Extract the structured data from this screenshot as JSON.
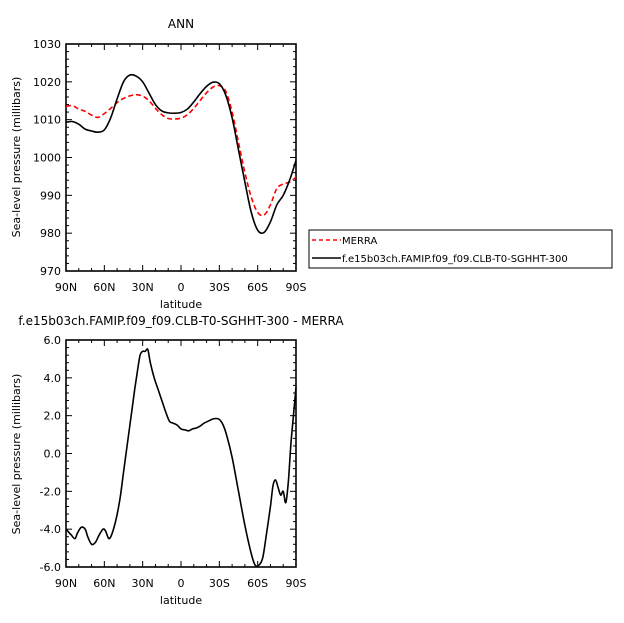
{
  "chart_data": [
    {
      "type": "line",
      "title": "ANN",
      "xlabel": "latitude",
      "ylabel": "Sea-level pressure (millibars)",
      "xlim": [
        90,
        -90
      ],
      "ylim": [
        970,
        1030
      ],
      "xticks": [
        {
          "v": 90,
          "label": "90N"
        },
        {
          "v": 60,
          "label": "60N"
        },
        {
          "v": 30,
          "label": "30N"
        },
        {
          "v": 0,
          "label": "0"
        },
        {
          "v": -30,
          "label": "30S"
        },
        {
          "v": -60,
          "label": "60S"
        },
        {
          "v": -90,
          "label": "90S"
        }
      ],
      "yticks": [
        {
          "v": 970,
          "label": "970"
        },
        {
          "v": 980,
          "label": "980"
        },
        {
          "v": 990,
          "label": "990"
        },
        {
          "v": 1000,
          "label": "1000"
        },
        {
          "v": 1010,
          "label": "1010"
        },
        {
          "v": 1020,
          "label": "1020"
        },
        {
          "v": 1030,
          "label": "1030"
        }
      ],
      "legend_position": "right-bottom",
      "series": [
        {
          "name": "MERRA",
          "color": "#ff0000",
          "dash": "dashed",
          "x": [
            90,
            85,
            80,
            75,
            70,
            65,
            60,
            55,
            50,
            45,
            40,
            35,
            30,
            25,
            20,
            15,
            10,
            5,
            0,
            -5,
            -10,
            -15,
            -20,
            -25,
            -30,
            -35,
            -40,
            -45,
            -50,
            -55,
            -60,
            -65,
            -70,
            -75,
            -80,
            -85,
            -90
          ],
          "y": [
            1013.5,
            1013.7,
            1012.8,
            1012.2,
            1011.2,
            1010.6,
            1011.6,
            1013.0,
            1014.5,
            1015.6,
            1016.3,
            1016.6,
            1016.2,
            1015.0,
            1013.0,
            1011.3,
            1010.3,
            1010.2,
            1010.4,
            1011.3,
            1013.0,
            1015.1,
            1017.1,
            1018.6,
            1019.0,
            1017.5,
            1012.0,
            1004.0,
            996.0,
            989.5,
            985.5,
            984.8,
            987.5,
            991.8,
            993.0,
            993.5,
            994.8
          ]
        },
        {
          "name": "f.e15b03ch.FAMIP.f09_f09.CLB-T0-SGHHT-300",
          "color": "#000000",
          "dash": "solid",
          "x": [
            90,
            85,
            80,
            75,
            70,
            65,
            60,
            55,
            50,
            45,
            40,
            35,
            30,
            25,
            20,
            15,
            10,
            5,
            0,
            -5,
            -10,
            -15,
            -20,
            -25,
            -30,
            -35,
            -40,
            -45,
            -50,
            -55,
            -60,
            -65,
            -70,
            -75,
            -80,
            -85,
            -90
          ],
          "y": [
            1009.3,
            1009.5,
            1008.8,
            1007.5,
            1007.0,
            1006.7,
            1007.3,
            1010.5,
            1015.5,
            1020.0,
            1021.8,
            1021.5,
            1020.0,
            1017.0,
            1014.0,
            1012.3,
            1011.8,
            1011.7,
            1011.9,
            1012.8,
            1014.7,
            1016.9,
            1018.8,
            1019.9,
            1019.5,
            1016.5,
            1010.5,
            1002.0,
            993.5,
            985.5,
            980.8,
            980.2,
            983.0,
            987.5,
            990.0,
            994.0,
            999.2
          ]
        }
      ]
    },
    {
      "type": "line",
      "title": "f.e15b03ch.FAMIP.f09_f09.CLB-T0-SGHHT-300 - MERRA",
      "xlabel": "latitude",
      "ylabel": "Sea-level pressure (millibars)",
      "xlim": [
        90,
        -90
      ],
      "ylim": [
        -6,
        6
      ],
      "xticks": [
        {
          "v": 90,
          "label": "90N"
        },
        {
          "v": 60,
          "label": "60N"
        },
        {
          "v": 30,
          "label": "30N"
        },
        {
          "v": 0,
          "label": "0"
        },
        {
          "v": -30,
          "label": "30S"
        },
        {
          "v": -60,
          "label": "60S"
        },
        {
          "v": -90,
          "label": "90S"
        }
      ],
      "yticks": [
        {
          "v": -6,
          "label": "-6.0"
        },
        {
          "v": -4,
          "label": "-4.0"
        },
        {
          "v": -2,
          "label": "-2.0"
        },
        {
          "v": 0,
          "label": "0.0"
        },
        {
          "v": 2,
          "label": "2.0"
        },
        {
          "v": 4,
          "label": "4.0"
        },
        {
          "v": 6,
          "label": "6.0"
        }
      ],
      "series": [
        {
          "color": "#000000",
          "dash": "solid",
          "x": [
            90,
            86,
            83,
            81,
            78,
            75,
            73,
            70,
            67,
            64,
            61,
            59,
            56,
            52,
            48,
            45,
            42,
            40,
            38,
            36,
            34,
            32,
            30,
            28,
            26,
            24,
            21,
            18,
            15,
            12,
            9,
            6,
            3,
            0,
            -3,
            -6,
            -9,
            -12,
            -15,
            -18,
            -21,
            -24,
            -27,
            -30,
            -33,
            -36,
            -40,
            -45,
            -50,
            -55,
            -58,
            -61,
            -64,
            -67,
            -70,
            -72,
            -74,
            -76,
            -78,
            -80,
            -82,
            -84,
            -86,
            -88,
            -90
          ],
          "y": [
            -4.0,
            -4.3,
            -4.5,
            -4.2,
            -3.9,
            -4.0,
            -4.4,
            -4.8,
            -4.7,
            -4.3,
            -4.0,
            -4.1,
            -4.5,
            -3.8,
            -2.5,
            -1.0,
            0.5,
            1.5,
            2.5,
            3.5,
            4.4,
            5.2,
            5.4,
            5.4,
            5.5,
            4.8,
            4.0,
            3.4,
            2.8,
            2.2,
            1.7,
            1.6,
            1.5,
            1.3,
            1.25,
            1.2,
            1.3,
            1.35,
            1.45,
            1.6,
            1.7,
            1.8,
            1.85,
            1.8,
            1.5,
            0.9,
            -0.2,
            -2.0,
            -3.8,
            -5.3,
            -5.9,
            -5.9,
            -5.5,
            -4.2,
            -2.8,
            -1.7,
            -1.4,
            -1.8,
            -2.2,
            -2.0,
            -2.6,
            -1.5,
            0.5,
            2.0,
            3.5
          ]
        }
      ]
    }
  ]
}
